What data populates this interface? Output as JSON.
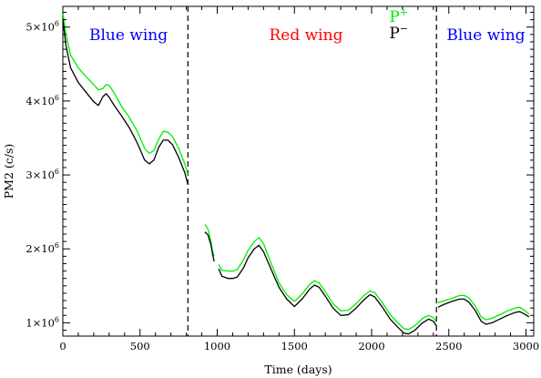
{
  "chart_data": {
    "type": "line",
    "title": "",
    "xlabel": "Time (days)",
    "ylabel": "PM2 (c/s)",
    "xlim": [
      0,
      3050
    ],
    "ylim": [
      820000,
      5280000
    ],
    "xticks": [
      0,
      500,
      1000,
      1500,
      2000,
      2500,
      3000
    ],
    "xtick_labels": [
      "0",
      "500",
      "1000",
      "1500",
      "2000",
      "2500",
      "3000"
    ],
    "yticks": [
      1000000,
      2000000,
      3000000,
      4000000,
      5000000
    ],
    "ytick_labels": [
      {
        "base": "1×10",
        "exp": "6"
      },
      {
        "base": "2×10",
        "exp": "6"
      },
      {
        "base": "3×10",
        "exp": "6"
      },
      {
        "base": "4×10",
        "exp": "6"
      },
      {
        "base": "5×10",
        "exp": "6"
      }
    ],
    "vlines": [
      810,
      2420
    ],
    "annotations": [
      {
        "text": "Blue wing",
        "color": "#0000ff",
        "x": 425,
        "y": 4900000
      },
      {
        "text": "Red wing",
        "color": "#ff0000",
        "x": 1575,
        "y": 4900000
      },
      {
        "text": "Blue wing",
        "color": "#0000ff",
        "x": 2740,
        "y": 4900000
      }
    ],
    "legend": {
      "position": "top-right",
      "entries": [
        {
          "base": "P",
          "sup": "+",
          "color": "#00ee00"
        },
        {
          "base": "P",
          "sup": "−",
          "color": "#000000"
        }
      ]
    },
    "grid": false,
    "series": [
      {
        "key": "p_plus",
        "color": "#00ee00",
        "segments": [
          [
            [
              0,
              5200000
            ],
            [
              20,
              4900000
            ],
            [
              50,
              4620000
            ],
            [
              100,
              4450000
            ],
            [
              150,
              4330000
            ],
            [
              200,
              4220000
            ],
            [
              230,
              4150000
            ],
            [
              260,
              4170000
            ],
            [
              280,
              4220000
            ],
            [
              300,
              4210000
            ],
            [
              330,
              4120000
            ],
            [
              380,
              3930000
            ],
            [
              430,
              3780000
            ],
            [
              480,
              3600000
            ],
            [
              530,
              3360000
            ],
            [
              560,
              3290000
            ],
            [
              590,
              3330000
            ],
            [
              620,
              3480000
            ],
            [
              650,
              3590000
            ],
            [
              680,
              3580000
            ],
            [
              710,
              3520000
            ],
            [
              750,
              3360000
            ],
            [
              790,
              3150000
            ],
            [
              810,
              3000000
            ]
          ],
          [
            [
              920,
              2330000
            ],
            [
              940,
              2270000
            ],
            [
              960,
              2100000
            ],
            [
              970,
              1960000
            ],
            [
              980,
              1900000
            ]
          ],
          [
            [
              1010,
              1790000
            ],
            [
              1030,
              1710000
            ],
            [
              1070,
              1700000
            ],
            [
              1100,
              1700000
            ],
            [
              1130,
              1720000
            ],
            [
              1170,
              1850000
            ],
            [
              1200,
              1980000
            ],
            [
              1240,
              2100000
            ],
            [
              1270,
              2150000
            ],
            [
              1300,
              2070000
            ],
            [
              1350,
              1800000
            ],
            [
              1400,
              1540000
            ],
            [
              1450,
              1380000
            ],
            [
              1500,
              1290000
            ],
            [
              1550,
              1390000
            ],
            [
              1600,
              1520000
            ],
            [
              1630,
              1570000
            ],
            [
              1660,
              1540000
            ],
            [
              1700,
              1420000
            ],
            [
              1750,
              1260000
            ],
            [
              1800,
              1160000
            ],
            [
              1850,
              1170000
            ],
            [
              1900,
              1260000
            ],
            [
              1950,
              1370000
            ],
            [
              1990,
              1430000
            ],
            [
              2020,
              1410000
            ],
            [
              2070,
              1270000
            ],
            [
              2120,
              1110000
            ],
            [
              2170,
              1000000
            ],
            [
              2210,
              920000
            ],
            [
              2240,
              910000
            ],
            [
              2280,
              960000
            ],
            [
              2330,
              1060000
            ],
            [
              2370,
              1100000
            ],
            [
              2400,
              1070000
            ],
            [
              2420,
              1010000
            ]
          ],
          [
            [
              2430,
              1270000
            ],
            [
              2470,
              1300000
            ],
            [
              2520,
              1330000
            ],
            [
              2570,
              1370000
            ],
            [
              2600,
              1370000
            ],
            [
              2630,
              1340000
            ],
            [
              2670,
              1230000
            ],
            [
              2710,
              1080000
            ],
            [
              2740,
              1040000
            ],
            [
              2780,
              1060000
            ],
            [
              2830,
              1110000
            ],
            [
              2880,
              1160000
            ],
            [
              2930,
              1200000
            ],
            [
              2960,
              1210000
            ],
            [
              2990,
              1170000
            ],
            [
              3020,
              1120000
            ]
          ]
        ]
      },
      {
        "key": "p_minus",
        "color": "#000000",
        "segments": [
          [
            [
              0,
              5100000
            ],
            [
              20,
              4750000
            ],
            [
              50,
              4450000
            ],
            [
              100,
              4250000
            ],
            [
              150,
              4120000
            ],
            [
              200,
              3990000
            ],
            [
              230,
              3940000
            ],
            [
              260,
              4060000
            ],
            [
              280,
              4100000
            ],
            [
              300,
              4050000
            ],
            [
              330,
              3950000
            ],
            [
              380,
              3800000
            ],
            [
              430,
              3640000
            ],
            [
              480,
              3440000
            ],
            [
              530,
              3200000
            ],
            [
              560,
              3150000
            ],
            [
              590,
              3200000
            ],
            [
              620,
              3370000
            ],
            [
              650,
              3470000
            ],
            [
              680,
              3470000
            ],
            [
              710,
              3410000
            ],
            [
              750,
              3240000
            ],
            [
              790,
              3030000
            ],
            [
              810,
              2870000
            ]
          ],
          [
            [
              920,
              2230000
            ],
            [
              940,
              2190000
            ],
            [
              960,
              2050000
            ],
            [
              970,
              1930000
            ],
            [
              980,
              1830000
            ]
          ],
          [
            [
              1010,
              1730000
            ],
            [
              1030,
              1630000
            ],
            [
              1070,
              1600000
            ],
            [
              1100,
              1600000
            ],
            [
              1130,
              1620000
            ],
            [
              1170,
              1740000
            ],
            [
              1200,
              1880000
            ],
            [
              1240,
              2000000
            ],
            [
              1270,
              2050000
            ],
            [
              1300,
              1960000
            ],
            [
              1350,
              1720000
            ],
            [
              1400,
              1480000
            ],
            [
              1450,
              1320000
            ],
            [
              1500,
              1220000
            ],
            [
              1550,
              1320000
            ],
            [
              1600,
              1460000
            ],
            [
              1630,
              1510000
            ],
            [
              1660,
              1480000
            ],
            [
              1700,
              1360000
            ],
            [
              1750,
              1200000
            ],
            [
              1800,
              1100000
            ],
            [
              1850,
              1110000
            ],
            [
              1900,
              1200000
            ],
            [
              1950,
              1310000
            ],
            [
              1990,
              1380000
            ],
            [
              2020,
              1350000
            ],
            [
              2070,
              1210000
            ],
            [
              2120,
              1050000
            ],
            [
              2170,
              940000
            ],
            [
              2210,
              860000
            ],
            [
              2240,
              850000
            ],
            [
              2280,
              900000
            ],
            [
              2330,
              1000000
            ],
            [
              2370,
              1050000
            ],
            [
              2400,
              1020000
            ],
            [
              2420,
              960000
            ]
          ],
          [
            [
              2430,
              1210000
            ],
            [
              2470,
              1250000
            ],
            [
              2520,
              1290000
            ],
            [
              2570,
              1320000
            ],
            [
              2600,
              1320000
            ],
            [
              2630,
              1280000
            ],
            [
              2670,
              1170000
            ],
            [
              2710,
              1020000
            ],
            [
              2740,
              980000
            ],
            [
              2780,
              1000000
            ],
            [
              2830,
              1050000
            ],
            [
              2880,
              1100000
            ],
            [
              2930,
              1140000
            ],
            [
              2960,
              1150000
            ],
            [
              2990,
              1120000
            ],
            [
              3020,
              1080000
            ]
          ]
        ]
      }
    ]
  }
}
